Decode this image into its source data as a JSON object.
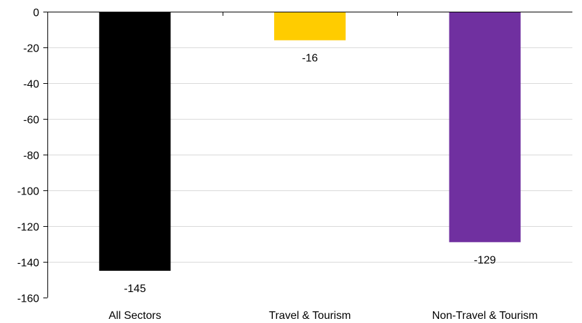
{
  "chart_data": {
    "type": "bar",
    "title": "",
    "xlabel": "",
    "ylabel": "",
    "categories": [
      "All Sectors",
      "Travel & Tourism",
      "Non-Travel & Tourism"
    ],
    "values": [
      -145,
      -16,
      -129
    ],
    "data_labels": [
      "-145",
      "-16",
      "-129"
    ],
    "colors": [
      "#000000",
      "#ffcc00",
      "#7030a0"
    ],
    "ylim": [
      -160,
      0
    ],
    "yticks": [
      0,
      -20,
      -40,
      -60,
      -80,
      -100,
      -120,
      -140,
      -160
    ],
    "ytick_labels": [
      "0",
      "-20",
      "-40",
      "-60",
      "-80",
      "-100",
      "-120",
      "-140",
      "-160"
    ],
    "grid": true,
    "legend": "none"
  }
}
